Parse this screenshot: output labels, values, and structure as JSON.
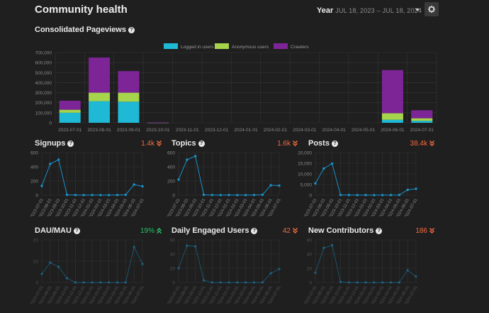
{
  "header": {
    "title": "Community health",
    "period_label": "Year",
    "period_dates": "JUL 18, 2023 – JUL 18, 2024"
  },
  "colors": {
    "logged_in": "#1fb9d6",
    "anonymous": "#a6d44a",
    "crawlers": "#7d2596",
    "line": "#1b90c8",
    "up": "#28c268",
    "down": "#f26b40",
    "grid": "#343434",
    "axis_text": "#8a8a8a"
  },
  "pageviews": {
    "title": "Consolidated Pageviews",
    "chart_data": {
      "type": "bar",
      "stacked": true,
      "title": "Consolidated Pageviews",
      "categories": [
        "2023-07-01",
        "2023-08-01",
        "2023-09-01",
        "2023-10-01",
        "2023-11-01",
        "2023-12-01",
        "2024-01-01",
        "2024-02-01",
        "2024-03-01",
        "2024-04-01",
        "2024-05-01",
        "2024-06-01",
        "2024-07-01"
      ],
      "series": [
        {
          "name": "Logged in users",
          "values": [
            100000,
            215000,
            210000,
            2000,
            0,
            0,
            0,
            0,
            0,
            0,
            0,
            30000,
            20000
          ]
        },
        {
          "name": "Anonymous users",
          "values": [
            30000,
            85000,
            90000,
            1000,
            0,
            0,
            0,
            0,
            0,
            0,
            0,
            65000,
            25000
          ]
        },
        {
          "name": "Crawlers",
          "values": [
            90000,
            350000,
            215000,
            1000,
            0,
            0,
            0,
            0,
            0,
            0,
            0,
            430000,
            80000
          ]
        }
      ],
      "yticks": [
        "0",
        "100,000",
        "200,000",
        "300,000",
        "400,000",
        "500,000",
        "600,000",
        "700,000"
      ],
      "ylim": [
        0,
        700000
      ],
      "legend_position": "top-center"
    }
  },
  "metrics": [
    {
      "title": "Signups",
      "value": "1.4k",
      "trend": "down",
      "chart_data": {
        "type": "line",
        "categories": [
          "2023-07-01",
          "2023-08-01",
          "2023-09-01",
          "2023-10-01",
          "2023-11-01",
          "2023-12-01",
          "2024-01-01",
          "2024-02-01",
          "2024-03-01",
          "2024-04-01",
          "2024-05-01",
          "2024-06-01",
          "2024-07-01"
        ],
        "values": [
          130,
          440,
          500,
          5,
          2,
          1,
          2,
          1,
          1,
          2,
          5,
          150,
          125
        ],
        "yticks": [
          "0",
          "200",
          "400",
          "600"
        ],
        "ylim": [
          0,
          600
        ]
      }
    },
    {
      "title": "Topics",
      "value": "1.6k",
      "trend": "down",
      "chart_data": {
        "type": "line",
        "categories": [
          "2023-07-01",
          "2023-08-01",
          "2023-09-01",
          "2023-10-01",
          "2023-11-01",
          "2023-12-01",
          "2024-01-01",
          "2024-02-01",
          "2024-03-01",
          "2024-04-01",
          "2024-05-01",
          "2024-06-01",
          "2024-07-01"
        ],
        "values": [
          220,
          500,
          550,
          5,
          2,
          1,
          2,
          1,
          1,
          2,
          5,
          140,
          135
        ],
        "yticks": [
          "0",
          "200",
          "400",
          "600"
        ],
        "ylim": [
          0,
          600
        ]
      }
    },
    {
      "title": "Posts",
      "value": "38.4k",
      "trend": "down",
      "chart_data": {
        "type": "line",
        "categories": [
          "2023-07-01",
          "2023-08-01",
          "2023-09-01",
          "2023-10-01",
          "2023-11-01",
          "2023-12-01",
          "2024-01-01",
          "2024-02-01",
          "2024-03-01",
          "2024-04-01",
          "2024-05-01",
          "2024-06-01",
          "2024-07-01"
        ],
        "values": [
          5500,
          12500,
          14800,
          100,
          50,
          30,
          40,
          20,
          30,
          40,
          100,
          2500,
          3000
        ],
        "yticks": [
          "0",
          "5,000",
          "10,000",
          "15,000",
          "20,000"
        ],
        "ylim": [
          0,
          20000
        ]
      }
    },
    {
      "title": "DAU/MAU",
      "value": "19%",
      "trend": "up",
      "chart_data": {
        "type": "line",
        "categories": [
          "2023-07-01",
          "2023-08-01",
          "2023-09-01",
          "2023-10-01",
          "2023-11-01",
          "2023-12-01",
          "2024-01-01",
          "2024-02-01",
          "2024-03-01",
          "2024-04-01",
          "2024-05-01",
          "2024-06-01",
          "2024-07-01"
        ],
        "values": [
          6,
          14,
          11,
          3,
          0,
          0,
          0,
          0,
          0,
          0,
          0,
          25,
          13
        ],
        "yticks": [
          "0",
          "10",
          "20"
        ],
        "ylim": [
          0,
          30
        ]
      }
    },
    {
      "title": "Daily Engaged Users",
      "value": "42",
      "trend": "down",
      "chart_data": {
        "type": "line",
        "categories": [
          "2023-07-01",
          "2023-08-01",
          "2023-09-01",
          "2023-10-01",
          "2023-11-01",
          "2023-12-01",
          "2024-01-01",
          "2024-02-01",
          "2024-03-01",
          "2024-04-01",
          "2024-05-01",
          "2024-06-01",
          "2024-07-01"
        ],
        "values": [
          20,
          52,
          51,
          3,
          0,
          0,
          0,
          0,
          0,
          0,
          0,
          13,
          19
        ],
        "yticks": [
          "0",
          "20",
          "40",
          "60"
        ],
        "ylim": [
          0,
          60
        ]
      }
    },
    {
      "title": "New Contributors",
      "value": "186",
      "trend": "down",
      "chart_data": {
        "type": "line",
        "categories": [
          "2023-07-01",
          "2023-08-01",
          "2023-09-01",
          "2023-10-01",
          "2023-11-01",
          "2023-12-01",
          "2024-01-01",
          "2024-02-01",
          "2024-03-01",
          "2024-04-01",
          "2024-05-01",
          "2024-06-01",
          "2024-07-01"
        ],
        "values": [
          18,
          65,
          70,
          1,
          0,
          0,
          0,
          0,
          0,
          0,
          0,
          23,
          11
        ],
        "yticks": [
          "0",
          "20",
          "40",
          "60"
        ],
        "ylim": [
          0,
          80
        ]
      }
    }
  ]
}
